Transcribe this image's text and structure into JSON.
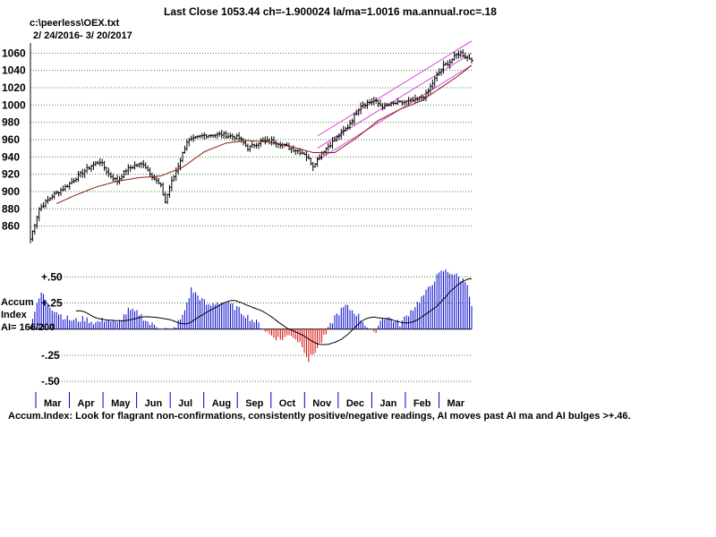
{
  "header": {
    "title": "Last Close 1053.44 ch=-1.900024  la/ma=1.0016 ma.annual.roc=.18",
    "file": "c:\\peerless\\OEX.txt",
    "date_range": "2/ 24/2016- 3/ 20/2017"
  },
  "colors": {
    "price_bar": "#000000",
    "moving_average": "#8b1a1a",
    "channel": "#e040e0",
    "grid": "#2f8f2f",
    "accum_positive": "#0000cc",
    "accum_negative": "#dd0000",
    "month_tick": "#0000cc"
  },
  "chart_data": [
    {
      "type": "line",
      "name": "price",
      "ylim": [
        840,
        1080
      ],
      "yticks": [
        "1060",
        "1040",
        "1020",
        "1000",
        "980",
        "960",
        "940",
        "920",
        "900",
        "880",
        "860"
      ],
      "grid": true,
      "x": [
        "Mar",
        "Apr",
        "May",
        "Jun",
        "Jul",
        "Aug",
        "Sep",
        "Oct",
        "Nov",
        "Dec",
        "Jan",
        "Feb",
        "Mar"
      ],
      "price_anchors": [
        [
          0,
          845
        ],
        [
          4,
          880
        ],
        [
          10,
          895
        ],
        [
          16,
          905
        ],
        [
          22,
          918
        ],
        [
          28,
          930
        ],
        [
          32,
          935
        ],
        [
          36,
          920
        ],
        [
          40,
          912
        ],
        [
          44,
          925
        ],
        [
          48,
          930
        ],
        [
          52,
          932
        ],
        [
          56,
          918
        ],
        [
          60,
          906
        ],
        [
          62,
          888
        ],
        [
          64,
          905
        ],
        [
          68,
          930
        ],
        [
          72,
          958
        ],
        [
          80,
          965
        ],
        [
          88,
          966
        ],
        [
          96,
          962
        ],
        [
          100,
          950
        ],
        [
          106,
          958
        ],
        [
          112,
          958
        ],
        [
          118,
          952
        ],
        [
          126,
          944
        ],
        [
          130,
          930
        ],
        [
          134,
          945
        ],
        [
          140,
          960
        ],
        [
          146,
          975
        ],
        [
          152,
          1000
        ],
        [
          158,
          1005
        ],
        [
          162,
          998
        ],
        [
          168,
          1002
        ],
        [
          174,
          1004
        ],
        [
          178,
          1006
        ],
        [
          182,
          1012
        ],
        [
          186,
          1030
        ],
        [
          190,
          1045
        ],
        [
          193,
          1050
        ],
        [
          196,
          1058
        ],
        [
          198,
          1060
        ],
        [
          200,
          1056
        ],
        [
          202,
          1054
        ],
        [
          203,
          1053.44
        ]
      ],
      "moving_average_anchors": [
        [
          12,
          886
        ],
        [
          20,
          895
        ],
        [
          30,
          905
        ],
        [
          40,
          912
        ],
        [
          50,
          916
        ],
        [
          60,
          918
        ],
        [
          70,
          928
        ],
        [
          80,
          946
        ],
        [
          90,
          956
        ],
        [
          100,
          959
        ],
        [
          110,
          957
        ],
        [
          120,
          952
        ],
        [
          130,
          945
        ],
        [
          140,
          945
        ],
        [
          150,
          962
        ],
        [
          160,
          982
        ],
        [
          170,
          995
        ],
        [
          180,
          1005
        ],
        [
          190,
          1022
        ],
        [
          197,
          1034
        ],
        [
          203,
          1046
        ]
      ],
      "channel_anchors": {
        "start_index": 132,
        "end_index": 203,
        "mid_start": 950,
        "mid_end": 1060,
        "band_offset": 14
      }
    },
    {
      "type": "bar",
      "name": "accumulation index",
      "ylim": [
        -0.55,
        0.58
      ],
      "yticks": [
        "+.50",
        "+.25",
        "-.25",
        "-.50"
      ],
      "labels": [
        "Accum",
        "Index",
        "AI= 166/200"
      ],
      "ma_window": 21,
      "accum_anchors": [
        [
          0,
          0.05
        ],
        [
          5,
          0.35
        ],
        [
          10,
          0.2
        ],
        [
          15,
          0.12
        ],
        [
          20,
          0.08
        ],
        [
          25,
          0.1
        ],
        [
          30,
          0.06
        ],
        [
          35,
          0.1
        ],
        [
          40,
          0.05
        ],
        [
          45,
          0.18
        ],
        [
          50,
          0.15
        ],
        [
          55,
          0.05
        ],
        [
          60,
          0.02
        ],
        [
          65,
          -0.02
        ],
        [
          70,
          0.12
        ],
        [
          74,
          0.38
        ],
        [
          78,
          0.3
        ],
        [
          82,
          0.22
        ],
        [
          86,
          0.26
        ],
        [
          90,
          0.25
        ],
        [
          95,
          0.2
        ],
        [
          100,
          0.12
        ],
        [
          105,
          0.05
        ],
        [
          110,
          -0.05
        ],
        [
          115,
          -0.1
        ],
        [
          120,
          -0.05
        ],
        [
          125,
          -0.15
        ],
        [
          128,
          -0.3
        ],
        [
          132,
          -0.18
        ],
        [
          136,
          -0.05
        ],
        [
          140,
          0.12
        ],
        [
          145,
          0.22
        ],
        [
          150,
          0.15
        ],
        [
          154,
          0.05
        ],
        [
          158,
          -0.05
        ],
        [
          162,
          0.12
        ],
        [
          166,
          0.1
        ],
        [
          170,
          0.05
        ],
        [
          174,
          0.15
        ],
        [
          178,
          0.25
        ],
        [
          182,
          0.35
        ],
        [
          186,
          0.48
        ],
        [
          190,
          0.56
        ],
        [
          194,
          0.54
        ],
        [
          198,
          0.48
        ],
        [
          201,
          0.45
        ],
        [
          203,
          0.2
        ]
      ]
    }
  ],
  "months": [
    "Mar",
    "Apr",
    "May",
    "Jun",
    "Jul",
    "Aug",
    "Sep",
    "Oct",
    "Nov",
    "Dec",
    "Jan",
    "Feb",
    "Mar"
  ],
  "footer": {
    "note": "Accum.Index: Look for flagrant non-confirmations, consistently positive/negative readings, AI moves past AI ma and AI bulges >+.46."
  }
}
